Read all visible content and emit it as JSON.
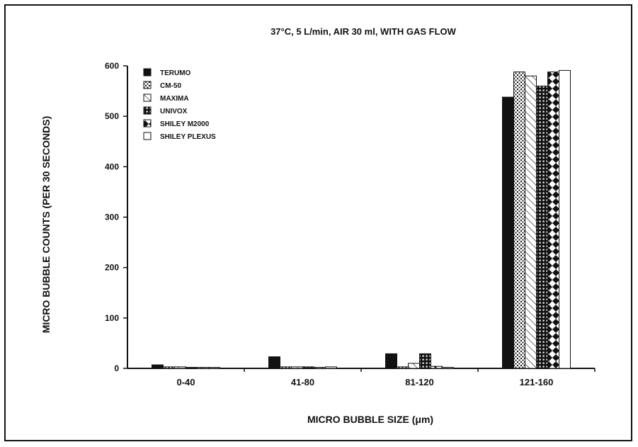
{
  "chart_data": {
    "type": "bar",
    "title": "37°C, 5 L/min, AIR 30 ml, WITH GAS FLOW",
    "xlabel": "MICRO BUBBLE SIZE (μm)",
    "ylabel": "MICRO BUBBLE COUNTS (PER 30 SECONDS)",
    "ylim": [
      0,
      600
    ],
    "yticks": [
      "0",
      "100",
      "200",
      "300",
      "400",
      "500",
      "600"
    ],
    "categories": [
      "0-40",
      "41-80",
      "81-120",
      "121-160"
    ],
    "grid": false,
    "legend_position": "top-left",
    "series": [
      {
        "name": "TERUMO",
        "pattern": "solid",
        "values": [
          7,
          23,
          29,
          538
        ]
      },
      {
        "name": "CM-50",
        "pattern": "dots",
        "values": [
          3,
          3,
          3,
          588
        ]
      },
      {
        "name": "MAXIMA",
        "pattern": "diagonal",
        "values": [
          3,
          3,
          10,
          580
        ]
      },
      {
        "name": "UNIVOX",
        "pattern": "grid",
        "values": [
          2,
          3,
          29,
          560
        ]
      },
      {
        "name": "SHILEY M2000",
        "pattern": "diamonds",
        "values": [
          2,
          2,
          4,
          588
        ]
      },
      {
        "name": "SHILEY PLEXUS",
        "pattern": "none",
        "values": [
          2,
          3,
          2,
          591
        ]
      }
    ]
  }
}
